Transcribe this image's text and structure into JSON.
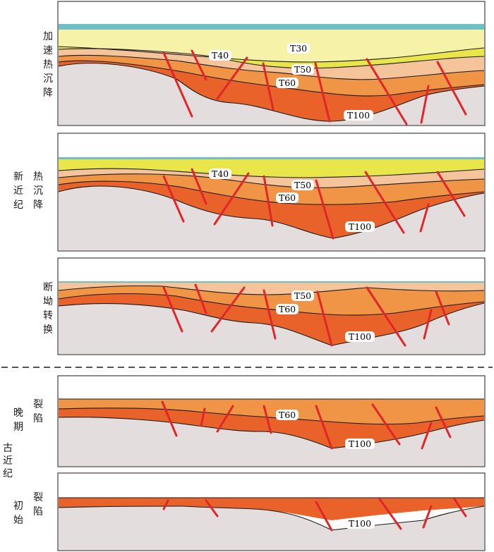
{
  "colors": {
    "sea": "#6fbfc4",
    "layer_t30": "#f6f2a8",
    "layer_t40": "#e9e64a",
    "layer_t50": "#f6c49a",
    "layer_t60": "#f09545",
    "layer_t100": "#e8622a",
    "basement": "#e3dedd",
    "fault": "#e1262a",
    "line": "#1a1a1a"
  },
  "stages": {
    "accelerated_thermal_subsidence": "加速热沉降",
    "neogene": "新近纪",
    "thermal_subsidence": "热沉降",
    "fault_depression_transition": "断坳转换",
    "paleogene": "古近纪",
    "late": "晚期",
    "early": "初始",
    "rift": "裂陷"
  },
  "horizons": {
    "t30": "T30",
    "t40": "T40",
    "t50": "T50",
    "t60": "T60",
    "t100": "T100"
  }
}
